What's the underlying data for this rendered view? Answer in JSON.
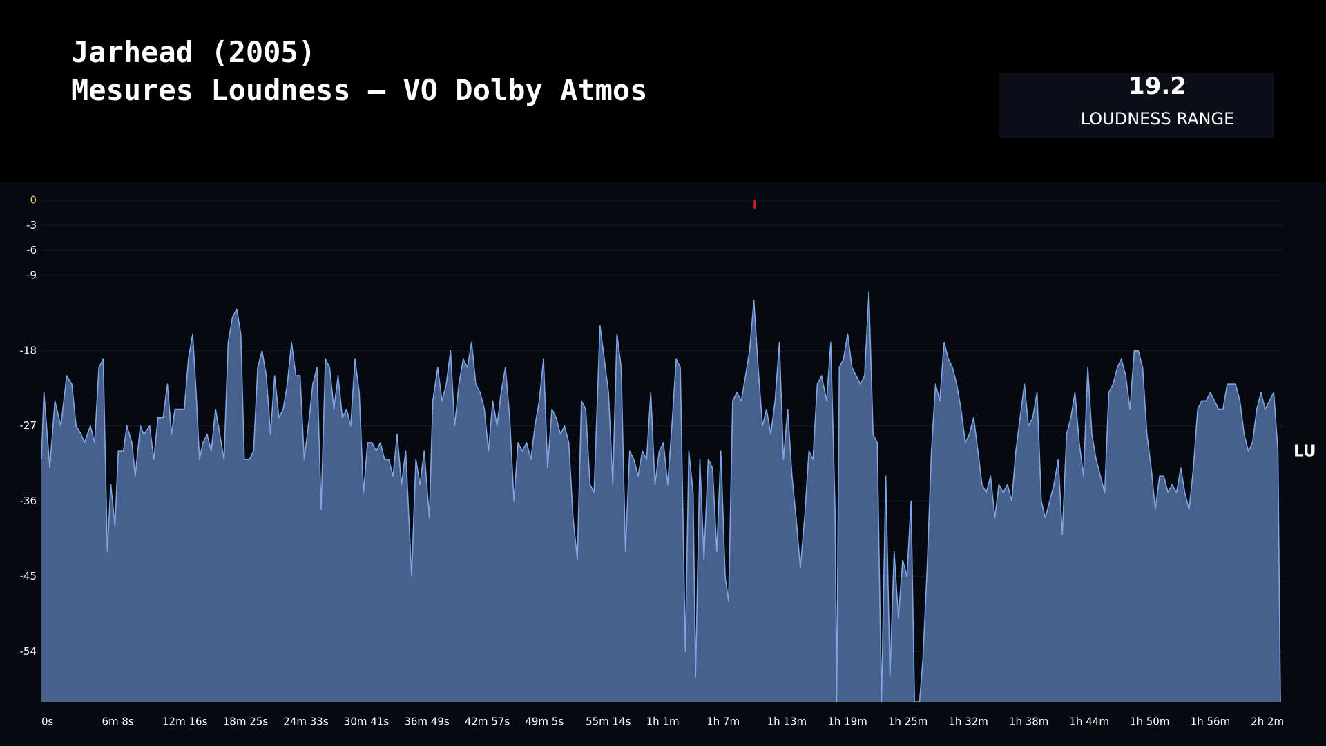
{
  "chart_data": {
    "type": "area",
    "title": "Jarhead (2005)",
    "subtitle": "Mesures Loudness – VO Dolby Atmos",
    "kpi": {
      "value": 19.2,
      "label": "LOUDNESS RANGE"
    },
    "unit_label": "LU",
    "color": "#7fa6e4",
    "fill": "#48608d",
    "grid": true,
    "xlim": [
      0,
      7565
    ],
    "ylim": [
      -60,
      0
    ],
    "yticks": [
      0,
      -3,
      -6,
      -9,
      -18,
      -27,
      -36,
      -45,
      -54
    ],
    "xticks": [
      {
        "value": 0,
        "label": "0s"
      },
      {
        "value": 368,
        "label": "6m 8s"
      },
      {
        "value": 736,
        "label": "12m 16s"
      },
      {
        "value": 1105,
        "label": "18m 25s"
      },
      {
        "value": 1473,
        "label": "24m 33s"
      },
      {
        "value": 1841,
        "label": "30m 41s"
      },
      {
        "value": 2209,
        "label": "36m 49s"
      },
      {
        "value": 2577,
        "label": "42m 57s"
      },
      {
        "value": 2945,
        "label": "49m 5s"
      },
      {
        "value": 3314,
        "label": "55m 14s"
      },
      {
        "value": 3682,
        "label": "1h 1m"
      },
      {
        "value": 4050,
        "label": "1h 7m"
      },
      {
        "value": 4418,
        "label": "1h 13m"
      },
      {
        "value": 4787,
        "label": "1h 19m"
      },
      {
        "value": 5155,
        "label": "1h 25m"
      },
      {
        "value": 5523,
        "label": "1h 32m"
      },
      {
        "value": 5891,
        "label": "1h 38m"
      },
      {
        "value": 6259,
        "label": "1h 44m"
      },
      {
        "value": 6627,
        "label": "1h 50m"
      },
      {
        "value": 6996,
        "label": "1h 56m"
      },
      {
        "value": 7364,
        "label": "2h 2m"
      }
    ],
    "markers": [
      {
        "x": 4343,
        "value": -0.5,
        "color": "#e0161b"
      }
    ],
    "x": [
      0,
      15,
      51,
      82,
      118,
      154,
      185,
      211,
      242,
      262,
      298,
      324,
      350,
      376,
      401,
      422,
      448,
      468,
      499,
      520,
      551,
      571,
      602,
      623,
      659,
      684,
      710,
      741,
      767,
      792,
      813,
      844,
      870,
      895,
      921,
      942,
      962,
      983,
      1009,
      1034,
      1060,
      1086,
      1112,
      1137,
      1163,
      1189,
      1214,
      1235,
      1266,
      1292,
      1317,
      1343,
      1369,
      1395,
      1420,
      1446,
      1472,
      1497,
      1523,
      1549,
      1575,
      1600,
      1631,
      1652,
      1678,
      1703,
      1729,
      1755,
      1781,
      1806,
      1832,
      1858,
      1883,
      1909,
      1935,
      1961,
      1986,
      2012,
      2038,
      2064,
      2089,
      2115,
      2141,
      2166,
      2192,
      2218,
      2254,
      2280,
      2305,
      2331,
      2362,
      2383,
      2413,
      2439,
      2465,
      2491,
      2516,
      2542,
      2568,
      2594,
      2619,
      2645,
      2671,
      2697,
      2722,
      2748,
      2774,
      2799,
      2825,
      2851,
      2877,
      2902,
      2928,
      2954,
      2980,
      3005,
      3031,
      3057,
      3082,
      3108,
      3134,
      3160,
      3185,
      3211,
      3237,
      3263,
      3288,
      3314,
      3340,
      3365,
      3401,
      3427,
      3453,
      3479,
      3504,
      3530,
      3556,
      3582,
      3607,
      3633,
      3659,
      3685,
      3710,
      3736,
      3762,
      3787,
      3813,
      3839,
      3865,
      3890,
      3921,
      3942,
      3968,
      3983,
      4009,
      4034,
      4060,
      4086,
      4112,
      4137,
      4163,
      4184,
      4209,
      4235,
      4261,
      4287,
      4312,
      4338,
      4364,
      4390,
      4415,
      4441,
      4467,
      4493,
      4518,
      4544,
      4570,
      4595,
      4621,
      4647,
      4673,
      4698,
      4724,
      4750,
      4781,
      4806,
      4832,
      4842,
      4858,
      4884,
      4909,
      4935,
      4961,
      4986,
      5012,
      5038,
      5064,
      5089,
      5115,
      5141,
      5167,
      5192,
      5218,
      5244,
      5270,
      5295,
      5316,
      5347,
      5367,
      5393,
      5419,
      5444,
      5470,
      5496,
      5522,
      5547,
      5573,
      5599,
      5625,
      5650,
      5676,
      5702,
      5727,
      5753,
      5779,
      5805,
      5830,
      5856,
      5882,
      5908,
      5933,
      5959,
      5985,
      6010,
      6036,
      6062,
      6088,
      6113,
      6139,
      6165,
      6191,
      6216,
      6242,
      6268,
      6293,
      6319,
      6345,
      6371,
      6396,
      6422,
      6448,
      6474,
      6499,
      6525,
      6551,
      6576,
      6602,
      6628,
      6654,
      6679,
      6705,
      6731,
      6757,
      6782,
      6808,
      6834,
      6860,
      6885,
      6911,
      6937,
      6962,
      6988,
      7014,
      7040,
      7065,
      7091,
      7117,
      7143,
      7168,
      7194,
      7220,
      7246,
      7271,
      7297,
      7323,
      7349,
      7374,
      7400,
      7426,
      7451,
      7477,
      7503,
      7529,
      7544
    ],
    "values": [
      -31,
      -23,
      -32,
      -24,
      -27,
      -21,
      -22,
      -27,
      -28,
      -29,
      -27,
      -29,
      -20,
      -19,
      -42,
      -34,
      -39,
      -30,
      -30,
      -27,
      -29,
      -33,
      -27,
      -28,
      -27,
      -31,
      -26,
      -26,
      -22,
      -28,
      -25,
      -25,
      -25,
      -19,
      -16,
      -23,
      -31,
      -29,
      -28,
      -30,
      -25,
      -28,
      -31,
      -17,
      -14,
      -13,
      -16,
      -31,
      -31,
      -30,
      -20,
      -18,
      -21,
      -28,
      -21,
      -26,
      -25,
      -22,
      -17,
      -21,
      -21,
      -31,
      -26,
      -22,
      -20,
      -37,
      -19,
      -20,
      -25,
      -21,
      -26,
      -25,
      -27,
      -19,
      -23,
      -35,
      -29,
      -29,
      -30,
      -29,
      -31,
      -31,
      -33,
      -28,
      -34,
      -30,
      -45,
      -31,
      -34,
      -30,
      -38,
      -24,
      -20,
      -24,
      -22,
      -18,
      -27,
      -22,
      -19,
      -20,
      -17,
      -22,
      -23,
      -25,
      -30,
      -24,
      -27,
      -23,
      -20,
      -26,
      -36,
      -29,
      -30,
      -29,
      -31,
      -27,
      -24,
      -19,
      -32,
      -25,
      -26,
      -28,
      -27,
      -29,
      -38,
      -43,
      -24,
      -25,
      -34,
      -35,
      -15,
      -19,
      -23,
      -34,
      -16,
      -20,
      -42,
      -30,
      -31,
      -33,
      -30,
      -31,
      -23,
      -34,
      -30,
      -29,
      -34,
      -27,
      -19,
      -20,
      -54,
      -30,
      -35,
      -57,
      -31,
      -43,
      -31,
      -32,
      -42,
      -30,
      -45,
      -48,
      -24,
      -23,
      -24,
      -21,
      -18,
      -12,
      -20,
      -27,
      -25,
      -28,
      -24,
      -17,
      -31,
      -25,
      -33,
      -38,
      -44,
      -38,
      -30,
      -31,
      -22,
      -21,
      -24,
      -17,
      -37,
      -60,
      -20,
      -19,
      -16,
      -20,
      -21,
      -22,
      -21,
      -11,
      -28,
      -29,
      -60,
      -33,
      -57,
      -42,
      -50,
      -43,
      -45,
      -36,
      -60,
      -60,
      -55,
      -44,
      -30,
      -22,
      -24,
      -17,
      -19,
      -20,
      -22,
      -25,
      -29,
      -28,
      -26,
      -30,
      -34,
      -35,
      -33,
      -38,
      -34,
      -35,
      -34,
      -36,
      -30,
      -26,
      -22,
      -27,
      -26,
      -23,
      -36,
      -38,
      -36,
      -34,
      -31,
      -40,
      -28,
      -26,
      -23,
      -29,
      -33,
      -20,
      -28,
      -31,
      -33,
      -35,
      -23,
      -22,
      -20,
      -19,
      -21,
      -25,
      -18,
      -18,
      -20,
      -28,
      -32,
      -37,
      -33,
      -33,
      -35,
      -34,
      -35,
      -32,
      -35,
      -37,
      -32,
      -25,
      -24,
      -24,
      -23,
      -24,
      -25,
      -25,
      -22,
      -22,
      -22,
      -24,
      -28,
      -30,
      -29,
      -25,
      -23,
      -25,
      -24,
      -23,
      -30,
      -60
    ]
  }
}
